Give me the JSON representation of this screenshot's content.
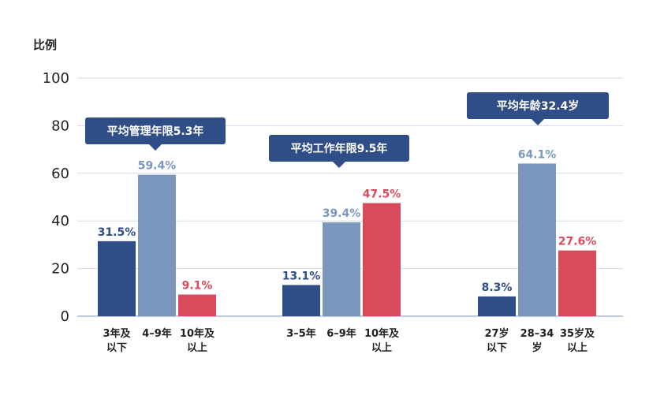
{
  "chart_data": {
    "type": "bar",
    "ylabel": "比例",
    "ylim": [
      0,
      100
    ],
    "yticks": [
      0,
      20,
      40,
      60,
      80,
      100
    ],
    "grid": true,
    "colors": {
      "dark": "#2f4d86",
      "light": "#7b97bd",
      "red": "#d94a5a",
      "axis": "#a9b6cc",
      "grid": "#d5dce8",
      "callout": "#2f4d86"
    },
    "groups": [
      {
        "callout": "平均管理年限5.3年",
        "bars": [
          {
            "label": [
              "3年及",
              "以下"
            ],
            "value": 31.5,
            "display": "31.5%",
            "color": "dark"
          },
          {
            "label": [
              "4–9年",
              ""
            ],
            "value": 59.4,
            "display": "59.4%",
            "color": "light"
          },
          {
            "label": [
              "10年及",
              "以上"
            ],
            "value": 9.1,
            "display": "9.1%",
            "color": "red"
          }
        ]
      },
      {
        "callout": "平均工作年限9.5年",
        "bars": [
          {
            "label": [
              "3–5年",
              ""
            ],
            "value": 13.1,
            "display": "13.1%",
            "color": "dark"
          },
          {
            "label": [
              "6–9年",
              ""
            ],
            "value": 39.4,
            "display": "39.4%",
            "color": "light"
          },
          {
            "label": [
              "10年及",
              "以上"
            ],
            "value": 47.5,
            "display": "47.5%",
            "color": "red"
          }
        ]
      },
      {
        "callout": "平均年龄32.4岁",
        "bars": [
          {
            "label": [
              "27岁",
              "以下"
            ],
            "value": 8.3,
            "display": "8.3%",
            "color": "dark"
          },
          {
            "label": [
              "28–34",
              "岁"
            ],
            "value": 64.1,
            "display": "64.1%",
            "color": "light"
          },
          {
            "label": [
              "35岁及",
              "以上"
            ],
            "value": 27.6,
            "display": "27.6%",
            "color": "red"
          }
        ]
      }
    ]
  }
}
